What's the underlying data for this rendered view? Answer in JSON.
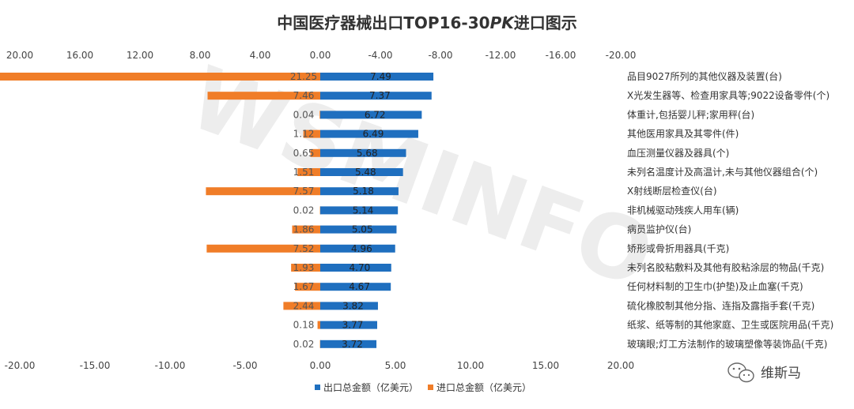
{
  "chart_data": {
    "type": "bar",
    "orientation": "horizontal",
    "title_main": "中国医疗器械出口TOP16-30",
    "title_pk": "PK",
    "title_tail": "进口图示",
    "top_ticks": [
      "20.00",
      "16.00",
      "12.00",
      "8.00",
      "4.00",
      "0.00",
      "-4.00",
      "-8.00",
      "-12.00",
      "-16.00",
      "-20.00"
    ],
    "bottom_ticks": [
      "-20.00",
      "-15.00",
      "-10.00",
      "-5.00",
      "0.00",
      "5.00",
      "10.00",
      "15.00",
      "20.00"
    ],
    "xlim": [
      -20,
      20
    ],
    "grid": false,
    "legend_position": "bottom",
    "categories": [
      "品目9027所列的其他仪器及装置(台)",
      "X光发生器等、检查用家具等;9022设备零件(个)",
      "体重计,包括婴儿秤;家用秤(台)",
      "其他医用家具及其零件(件)",
      "血压测量仪器及器具(个)",
      "未列名温度计及高温计,未与其他仪器组合(个)",
      "X射线断层检查仪(台)",
      "非机械驱动残疾人用车(辆)",
      "病员监护仪(台)",
      "矫形或骨折用器具(千克)",
      "未列名胶粘敷料及其他有胶粘涂层的物品(千克)",
      "任何材料制的卫生巾(护垫)及止血塞(千克)",
      "硫化橡胶制其他分指、连指及露指手套(千克)",
      "纸浆、纸等制的其他家庭、卫生或医院用品(千克)",
      "玻璃眼;灯工方法制作的玻璃塑像等装饰品(千克)"
    ],
    "series": [
      {
        "name": "出口总金额（亿美元）",
        "color": "#1f6fbf",
        "values": [
          7.49,
          7.37,
          6.72,
          6.49,
          5.68,
          5.48,
          5.18,
          5.14,
          5.05,
          4.96,
          4.7,
          4.67,
          3.82,
          3.77,
          3.72
        ],
        "labels": [
          "7.49",
          "7.37",
          "6.72",
          "6.49",
          "5.68",
          "5.48",
          "5.18",
          "5.14",
          "5.05",
          "4.96",
          "4.70",
          "4.67",
          "3.82",
          "3.77",
          "3.72"
        ]
      },
      {
        "name": "进口总金额（亿美元）",
        "color": "#f07d28",
        "values": [
          21.25,
          7.46,
          0.04,
          1.12,
          0.65,
          1.51,
          7.57,
          0.02,
          1.86,
          7.52,
          1.93,
          1.67,
          2.44,
          0.18,
          0.02
        ],
        "labels": [
          "21.25",
          "7.46",
          "0.04",
          "1.12",
          "0.65",
          "1.51",
          "7.57",
          "0.02",
          "1.86",
          "7.52",
          "1.93",
          "1.67",
          "2.44",
          "0.18",
          "0.02"
        ]
      }
    ]
  },
  "watermark": "WSMINFO",
  "brand": "维斯马"
}
